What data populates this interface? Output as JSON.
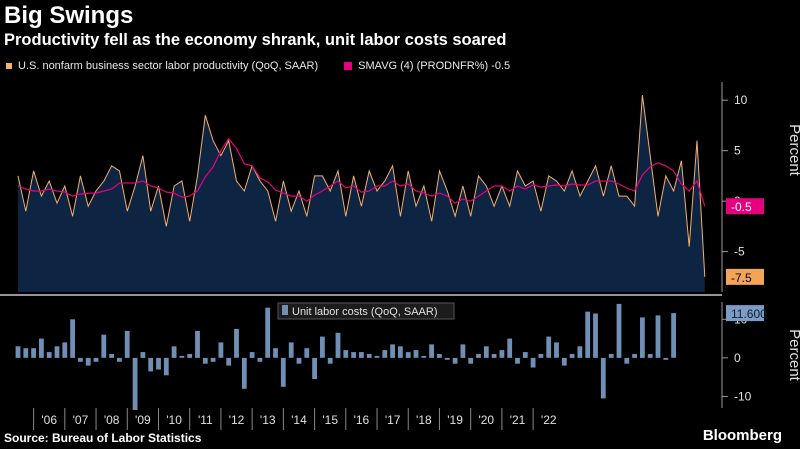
{
  "title": "Big Swings",
  "subtitle": "Productivity fell as the economy shrank, unit labor costs soared",
  "source": "Source: Bureau of Labor Statistics",
  "brand": "Bloomberg",
  "colors": {
    "background": "#000000",
    "productivity_line": "#f5b06b",
    "productivity_fill": "#0e2443",
    "smavg": "#e6007e",
    "ulc_bars": "#6f8fb5",
    "last_value_productivity": "#f5a356",
    "last_value_smavg": "#e6007e",
    "last_value_ulc": "#7d9cc4"
  },
  "chart_data": [
    {
      "type": "area",
      "legend": [
        {
          "name": "U.S. nonfarm business sector labor productivity (QoQ, SAAR)"
        },
        {
          "name": "SMAVG (4) (PRODNFR%) -0.5"
        }
      ],
      "ylabel": "Percent",
      "yticks": [
        "10",
        "5",
        "0",
        "-5"
      ],
      "ylim": [
        -9,
        12
      ],
      "last_values": [
        "-0.5",
        "-7.5"
      ],
      "x_start": 2005.5,
      "series": [
        {
          "name": "U.S. nonfarm business sector labor productivity (QoQ, SAAR)",
          "values": [
            2.5,
            -1.0,
            3.0,
            0.5,
            2.0,
            -0.2,
            1.5,
            -1.5,
            2.5,
            -0.5,
            1.0,
            2.0,
            3.5,
            3.0,
            -1.0,
            1.5,
            4.5,
            -1.0,
            1.5,
            -2.5,
            1.5,
            2.0,
            -2.0,
            2.5,
            8.5,
            6.0,
            4.5,
            6.0,
            2.0,
            1.0,
            3.5,
            2.0,
            1.0,
            -2.0,
            2.0,
            -1.0,
            1.0,
            -1.5,
            2.5,
            2.5,
            1.0,
            3.0,
            -1.5,
            2.5,
            -0.5,
            3.0,
            1.0,
            2.0,
            3.5,
            -1.5,
            3.0,
            -0.5,
            1.5,
            -2.0,
            3.0,
            1.0,
            -1.5,
            1.5,
            -1.5,
            2.5,
            1.5,
            -0.5,
            1.5,
            -0.5,
            3.0,
            1.5,
            2.0,
            -1.0,
            2.5,
            2.0,
            1.0,
            3.0,
            0.5,
            2.0,
            3.5,
            0.5,
            3.5,
            0.5,
            0.5,
            -0.5,
            10.5,
            4.5,
            -1.5,
            2.5,
            1.0,
            4.0,
            -4.5,
            6.0,
            -7.5
          ]
        },
        {
          "name": "SMAVG (4) (PRODNFR%) -0.5",
          "values": [
            1.5,
            1.2,
            1.0,
            1.0,
            1.2,
            1.0,
            0.9,
            0.5,
            0.7,
            0.8,
            0.8,
            1.0,
            1.2,
            1.8,
            1.8,
            1.8,
            2.0,
            1.5,
            1.3,
            0.9,
            0.8,
            0.4,
            0.5,
            1.0,
            2.4,
            3.4,
            5.0,
            6.2,
            5.2,
            3.7,
            3.5,
            2.3,
            1.9,
            1.1,
            0.8,
            0.5,
            0.5,
            0.0,
            0.6,
            1.0,
            1.5,
            2.0,
            1.3,
            1.5,
            0.9,
            1.0,
            1.5,
            1.5,
            2.0,
            1.5,
            1.7,
            1.0,
            0.8,
            0.5,
            0.8,
            0.5,
            -0.2,
            0.2,
            0.0,
            0.5,
            1.0,
            1.5,
            1.5,
            1.0,
            1.5,
            1.2,
            1.6,
            1.4,
            1.5,
            1.6,
            1.5,
            1.7,
            1.6,
            1.6,
            2.0,
            2.0,
            2.0,
            1.7,
            1.3,
            1.0,
            2.6,
            3.4,
            3.8,
            3.5,
            3.0,
            1.7,
            1.0,
            2.0,
            -0.5
          ]
        }
      ]
    },
    {
      "type": "bar",
      "legend": [
        {
          "name": "Unit labor costs (QoQ, SAAR)"
        }
      ],
      "ylabel": "Percent",
      "yticks": [
        "10",
        "0",
        "-10"
      ],
      "ylim": [
        -13,
        15
      ],
      "last_values": [
        "11.600"
      ],
      "x_start": 2005.5,
      "x_tick_labels": [
        "'06",
        "'07",
        "'08",
        "'09",
        "'10",
        "'11",
        "'12",
        "'13",
        "'14",
        "'15",
        "'16",
        "'17",
        "'18",
        "'19",
        "'20",
        "'21",
        "'22"
      ],
      "values": [
        3.0,
        2.5,
        2.5,
        5.0,
        1.5,
        3.0,
        4.0,
        10.0,
        -1.0,
        -2.0,
        -1.0,
        6.0,
        1.0,
        -1.0,
        7.0,
        -13.5,
        1.5,
        -3.5,
        -3.0,
        -4.5,
        3.0,
        0.5,
        1.0,
        7.0,
        -1.5,
        -1.0,
        4.0,
        -2.0,
        7.5,
        -8.0,
        1.5,
        -1.0,
        13.0,
        2.5,
        -7.5,
        4.0,
        -1.5,
        2.5,
        -5.5,
        5.5,
        -1.5,
        6.5,
        2.0,
        1.5,
        1.5,
        1.0,
        0.5,
        2.0,
        3.5,
        3.0,
        1.5,
        2.0,
        0.5,
        3.5,
        1.0,
        -0.5,
        -1.5,
        3.5,
        -1.5,
        1.0,
        3.0,
        1.0,
        2.0,
        5.0,
        -1.5,
        1.5,
        -2.5,
        1.0,
        5.5,
        4.0,
        -2.0,
        1.0,
        3.0,
        12.0,
        11.5,
        -10.5,
        1.0,
        14.0,
        -1.5,
        1.0,
        10.5,
        1.0,
        11.0,
        -0.5,
        11.6
      ]
    }
  ]
}
